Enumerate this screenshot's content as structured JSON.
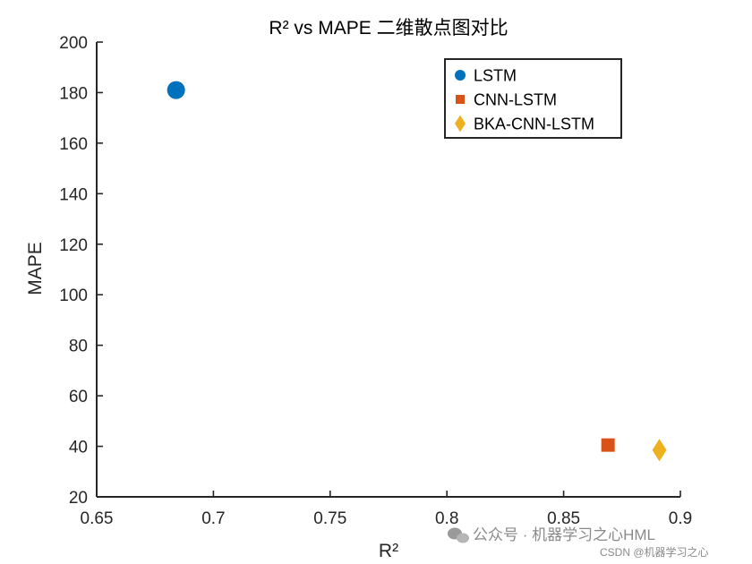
{
  "chart_data": {
    "type": "scatter",
    "title": "R² vs MAPE 二维散点图对比",
    "xlabel": "R²",
    "ylabel": "MAPE",
    "xlim": [
      0.65,
      0.9
    ],
    "ylim": [
      20,
      200
    ],
    "xticks": [
      0.65,
      0.7,
      0.75,
      0.8,
      0.85,
      0.9
    ],
    "xtick_labels": [
      "0.65",
      "0.7",
      "0.75",
      "0.8",
      "0.85",
      "0.9"
    ],
    "yticks": [
      20,
      40,
      60,
      80,
      100,
      120,
      140,
      160,
      180,
      200
    ],
    "ytick_labels": [
      "20",
      "40",
      "60",
      "80",
      "100",
      "120",
      "140",
      "160",
      "180",
      "200"
    ],
    "grid": false,
    "legend_position": "top-right",
    "series": [
      {
        "name": "LSTM",
        "marker": "circle",
        "color": "#0072BD",
        "points": [
          {
            "x": 0.684,
            "y": 181
          }
        ]
      },
      {
        "name": "CNN-LSTM",
        "marker": "square",
        "color": "#D95319",
        "points": [
          {
            "x": 0.869,
            "y": 40.5
          }
        ]
      },
      {
        "name": "BKA-CNN-LSTM",
        "marker": "diamond",
        "color": "#EDB120",
        "points": [
          {
            "x": 0.891,
            "y": 38.5
          }
        ]
      }
    ]
  },
  "watermark": {
    "line1": "公众号 · 机器学习之心HML",
    "line2": "CSDN @机器学习之心"
  }
}
